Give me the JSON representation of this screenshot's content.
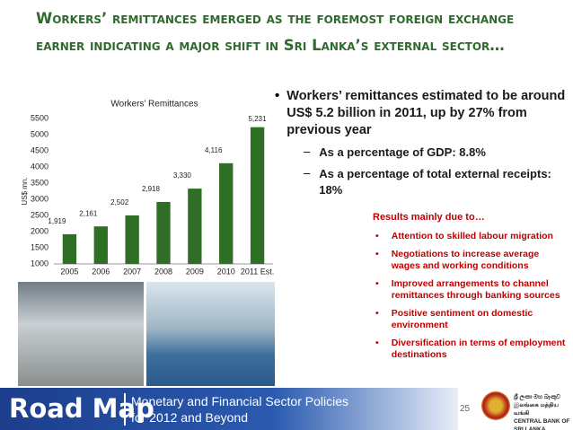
{
  "title": "Workers’ remittances emerged as the foremost foreign exchange earner indicating a major shift in Sri Lanka’s external sector…",
  "chart_data": {
    "type": "bar",
    "title": "Workers’ Remittances",
    "y_label": "US$ mn.",
    "categories": [
      "2005",
      "2006",
      "2007",
      "2008",
      "2009",
      "2010",
      "2011 Est."
    ],
    "values": [
      1919,
      2161,
      2502,
      2918,
      3330,
      4116,
      5231
    ],
    "value_labels": [
      "1,919",
      "2,161",
      "2,502",
      "2,918",
      "3,330",
      "4,116",
      "5,231"
    ],
    "color": "#2f6e25",
    "ylim": [
      1000,
      5500
    ],
    "yticks": [
      1000,
      1500,
      2000,
      2500,
      3000,
      3500,
      4000,
      4500,
      5000,
      5500
    ],
    "grid": false
  },
  "bullets": [
    {
      "text": "Workers’ remittances estimated to be around US$ 5.2 billion in 2011, up by 27% from previous year",
      "subs": [
        "As a percentage of GDP: 8.8%",
        "As a percentage of total external receipts: 18%"
      ]
    }
  ],
  "results": {
    "heading": "Results mainly due to…",
    "items": [
      "Attention to skilled labour migration",
      "Negotiations to increase average wages and working conditions",
      "Improved arrangements to channel remittances through banking sources",
      "Positive sentiment on domestic environment",
      "Diversification in terms of employment destinations"
    ]
  },
  "footer": {
    "brand": "Road Map",
    "line1": "Monetary and Financial Sector Policies",
    "line2": "for 2012 and Beyond",
    "page": "25",
    "bank": [
      "ශ්‍රී ලංකා මහ බැංකුව",
      "இலங்கை மத்திய வங்கி",
      "CENTRAL BANK OF SRI LANKA"
    ]
  }
}
